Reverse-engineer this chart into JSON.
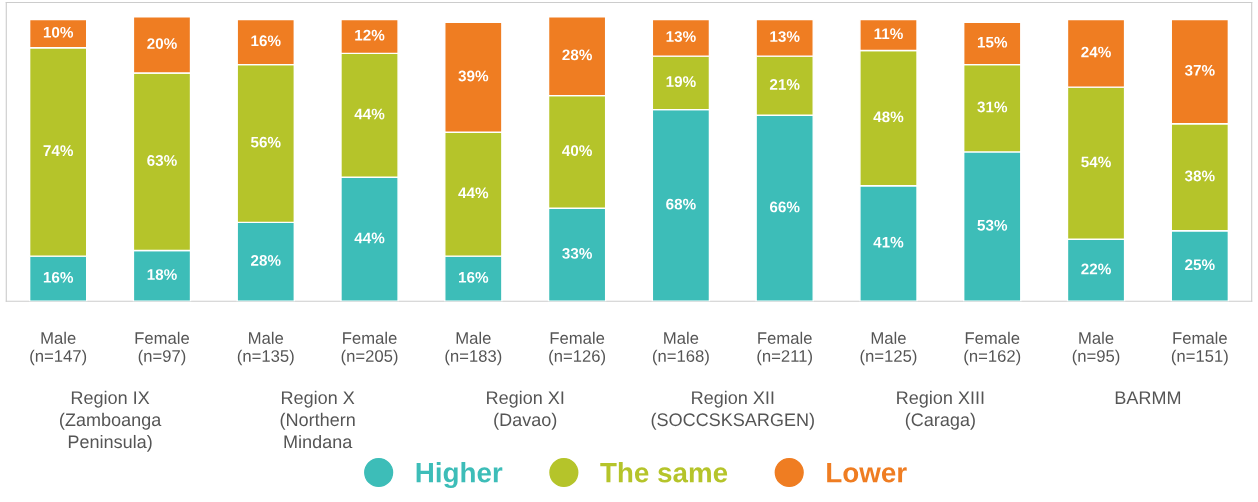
{
  "chart_data": {
    "type": "bar",
    "stacked": true,
    "legend": "bottom",
    "tick_labels": "x",
    "categories": [
      "Male\n(n=147)",
      "Female\n(n=97)",
      "Male\n(n=135)",
      "Female\n(n=205)",
      "Male\n(n=183)",
      "Female\n(n=126)",
      "Male\n(n=168)",
      "Female\n(n=211)",
      "Male\n(n=125)",
      "Female\n(n=162)",
      "Male\n(n=95)",
      "Female\n(n=151)"
    ],
    "series": [
      {
        "name": "Higher",
        "color": "#3dbdb8",
        "values": [
          16,
          18,
          28,
          44,
          16,
          33,
          68,
          66,
          41,
          53,
          22,
          25
        ],
        "value_labels": [
          "16%",
          "18%",
          "28%",
          "44%",
          "16%",
          "33%",
          "68%",
          "66%",
          "41%",
          "53%",
          "22%",
          "25%"
        ]
      },
      {
        "name": "The same",
        "color": "#b5c42a",
        "values": [
          74,
          63,
          56,
          44,
          44,
          40,
          19,
          21,
          48,
          31,
          54,
          38
        ],
        "value_labels": [
          "74%",
          "63%",
          "56%",
          "44%",
          "44%",
          "40%",
          "19%",
          "21%",
          "48%",
          "31%",
          "54%",
          "38%"
        ]
      },
      {
        "name": "Lower",
        "color": "#ef7d22",
        "values": [
          10,
          20,
          16,
          12,
          39,
          28,
          13,
          13,
          11,
          15,
          24,
          37
        ],
        "value_labels": [
          "10%",
          "20%",
          "16%",
          "12%",
          "39%",
          "28%",
          "13%",
          "13%",
          "11%",
          "15%",
          "24%",
          "37%"
        ]
      }
    ],
    "annotations": [
      "Region IX\n(Zamboanga\nPeninsula)",
      "Region X\n(Northern\nMindana",
      "Region XI\n(Davao)",
      "Region XII\n(SOCCSKSARGEN)",
      "Region XIII\n(Caraga)",
      "BARMM"
    ]
  }
}
